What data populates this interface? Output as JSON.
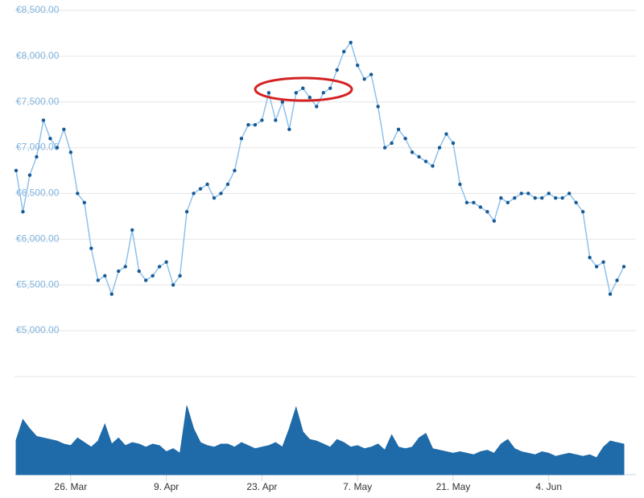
{
  "chart_data": [
    {
      "type": "line",
      "color": "#8fc1ea",
      "marker_color": "#165a96",
      "categories": [
        null,
        null,
        null,
        null,
        null,
        null,
        null,
        null,
        "26. Mar",
        null,
        null,
        null,
        null,
        null,
        null,
        null,
        null,
        null,
        null,
        null,
        null,
        null,
        "9. Apr",
        null,
        null,
        null,
        null,
        null,
        null,
        null,
        null,
        null,
        null,
        null,
        null,
        null,
        "23. Apr",
        null,
        null,
        null,
        null,
        null,
        null,
        null,
        null,
        null,
        null,
        null,
        null,
        null,
        "7. May",
        null,
        null,
        null,
        null,
        null,
        null,
        null,
        null,
        null,
        null,
        null,
        null,
        null,
        "21. May",
        null,
        null,
        null,
        null,
        null,
        null,
        null,
        null,
        null,
        null,
        null,
        null,
        null,
        "4. Jun",
        null,
        null,
        null,
        null,
        null,
        null,
        null,
        null,
        null,
        null,
        null
      ],
      "values": [
        6750,
        6300,
        6700,
        6900,
        7300,
        7100,
        7000,
        7200,
        6950,
        6500,
        6400,
        5900,
        5550,
        5600,
        5400,
        5650,
        5700,
        6100,
        5650,
        5550,
        5600,
        5700,
        5750,
        5500,
        5600,
        6300,
        6500,
        6550,
        6600,
        6450,
        6500,
        6600,
        6750,
        7100,
        7250,
        7250,
        7300,
        7600,
        7300,
        7500,
        7200,
        7600,
        7650,
        7550,
        7450,
        7600,
        7650,
        7850,
        8050,
        8150,
        7900,
        7750,
        7800,
        7450,
        7000,
        7050,
        7200,
        7100,
        6950,
        6900,
        6850,
        6800,
        7000,
        7150,
        7050,
        6600,
        6400,
        6400,
        6350,
        6300,
        6200,
        6450,
        6400,
        6450,
        6500,
        6500,
        6450,
        6450,
        6500,
        6450,
        6450,
        6500,
        6400,
        6300,
        5800,
        5700,
        5750,
        5400,
        5550,
        5700
      ],
      "ylim": [
        5000,
        8500
      ],
      "yticks": [
        {
          "value": 5000,
          "label": "€5,000.00"
        },
        {
          "value": 5500,
          "label": "€5,500.00"
        },
        {
          "value": 6000,
          "label": "€6,000.00"
        },
        {
          "value": 6500,
          "label": "€6,500.00"
        },
        {
          "value": 7000,
          "label": "€7,000.00"
        },
        {
          "value": 7500,
          "label": "€7,500.00"
        },
        {
          "value": 8000,
          "label": "€8,000.00"
        },
        {
          "value": 8500,
          "label": "€8,500.00"
        }
      ],
      "grid": true
    },
    {
      "type": "area",
      "color": "#1f6aa8",
      "values": [
        45,
        72,
        60,
        50,
        48,
        46,
        44,
        40,
        38,
        48,
        42,
        36,
        44,
        66,
        40,
        48,
        38,
        42,
        40,
        36,
        40,
        38,
        30,
        34,
        28,
        90,
        60,
        42,
        38,
        36,
        40,
        40,
        36,
        42,
        38,
        34,
        36,
        38,
        42,
        36,
        60,
        88,
        56,
        46,
        44,
        40,
        36,
        46,
        42,
        36,
        38,
        34,
        36,
        40,
        32,
        52,
        36,
        34,
        36,
        48,
        54,
        34,
        32,
        30,
        28,
        30,
        28,
        26,
        30,
        32,
        28,
        40,
        46,
        34,
        30,
        28,
        26,
        30,
        28,
        24,
        26,
        28,
        26,
        24,
        26,
        22,
        36,
        44,
        42,
        40
      ],
      "ylim": [
        0,
        100
      ]
    }
  ]
}
